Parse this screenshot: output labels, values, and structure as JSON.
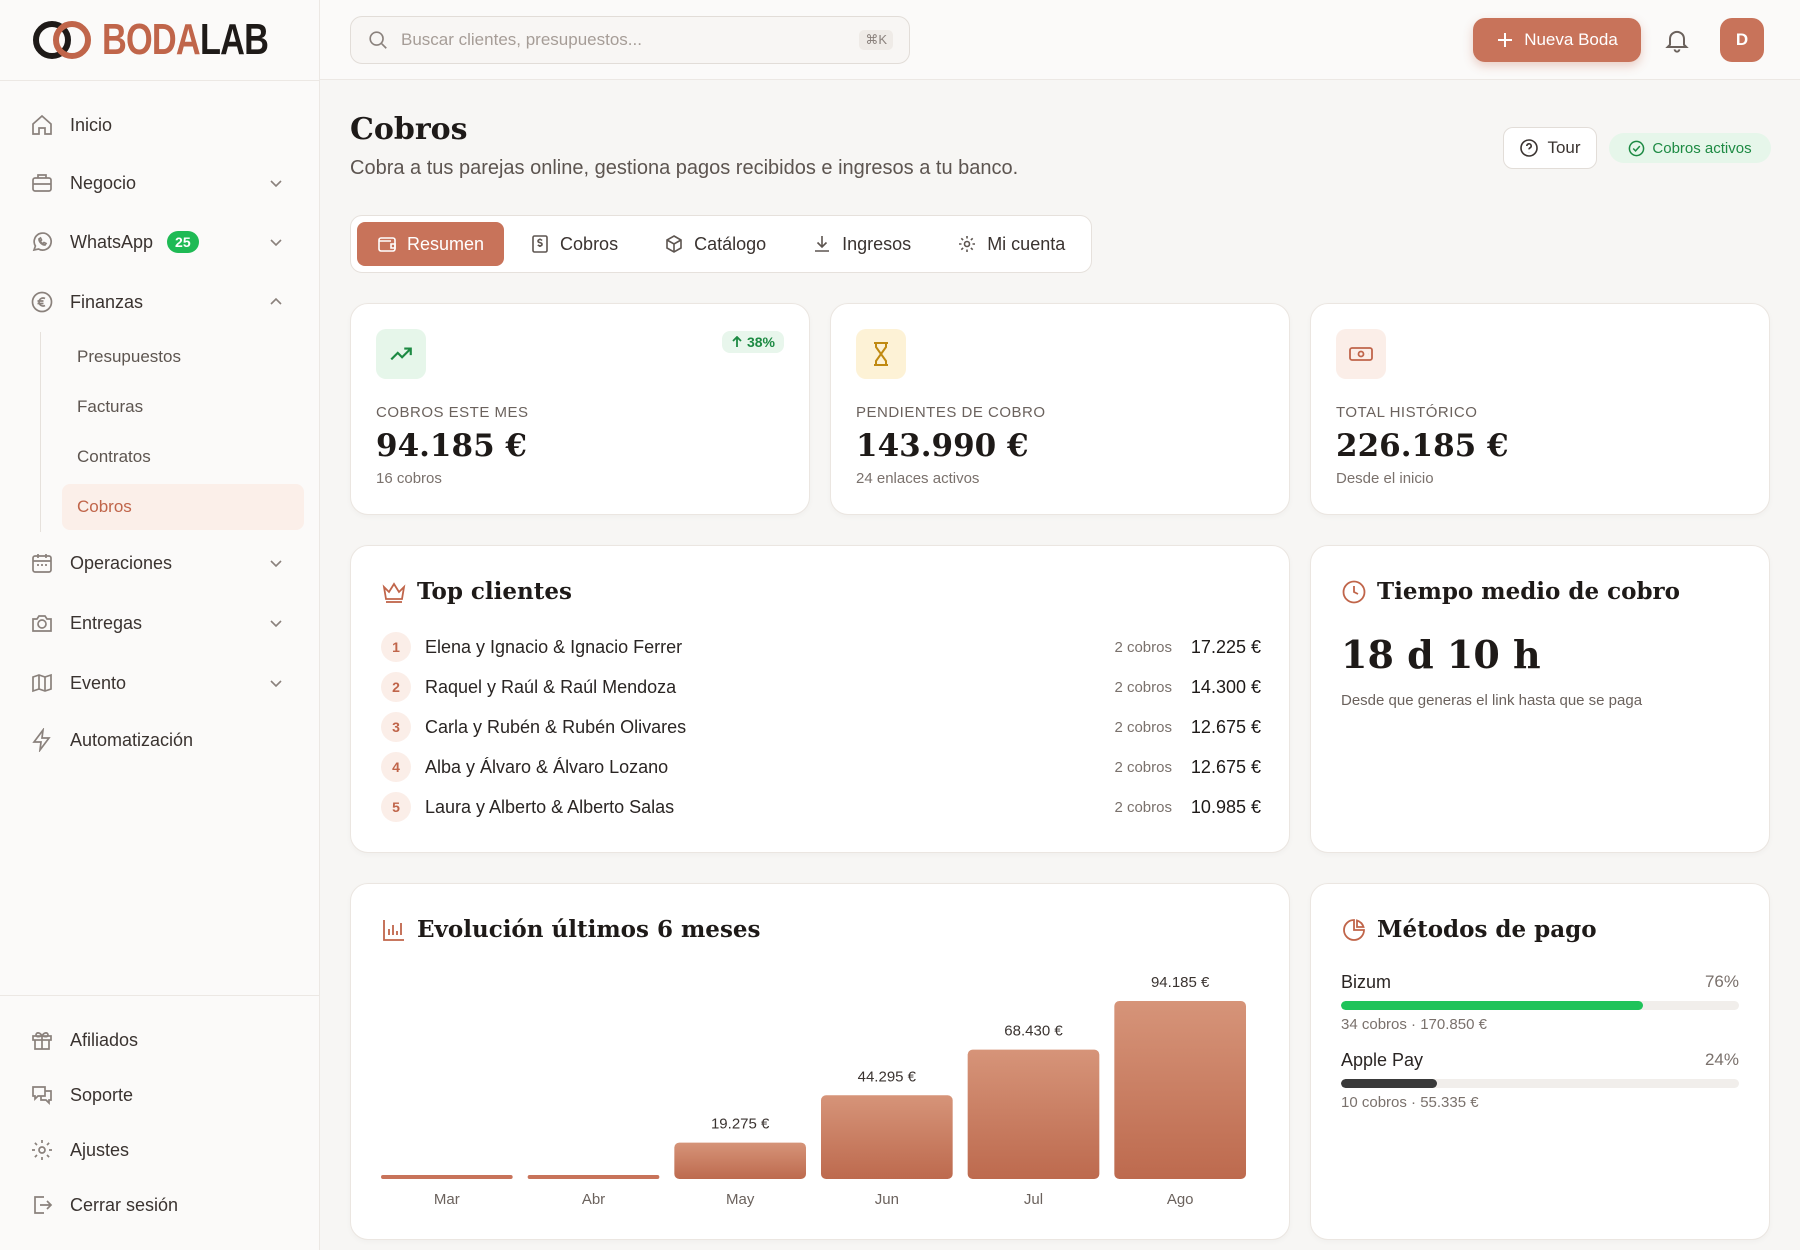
{
  "brand": {
    "logo_left": "BODA",
    "logo_right": "LAB"
  },
  "sidebar": {
    "items": [
      {
        "label": "Inicio"
      },
      {
        "label": "Negocio"
      },
      {
        "label": "WhatsApp",
        "badge": "25"
      },
      {
        "label": "Finanzas"
      },
      {
        "label": "Operaciones"
      },
      {
        "label": "Entregas"
      },
      {
        "label": "Evento"
      },
      {
        "label": "Automatización"
      }
    ],
    "finanzas_sub": [
      {
        "label": "Presupuestos"
      },
      {
        "label": "Facturas"
      },
      {
        "label": "Contratos"
      },
      {
        "label": "Cobros",
        "active": true
      }
    ],
    "bottom": [
      {
        "label": "Afiliados"
      },
      {
        "label": "Soporte"
      },
      {
        "label": "Ajustes"
      },
      {
        "label": "Cerrar sesión"
      }
    ]
  },
  "topbar": {
    "search_placeholder": "Buscar clientes, presupuestos...",
    "search_shortcut": "⌘K",
    "new_button": "Nueva Boda",
    "avatar_initial": "D"
  },
  "page": {
    "title": "Cobros",
    "subtitle": "Cobra a tus parejas online, gestiona pagos recibidos e ingresos a tu banco.",
    "tour_button": "Tour",
    "status_pill": "Cobros activos"
  },
  "tabs": [
    {
      "label": "Resumen",
      "active": true
    },
    {
      "label": "Cobros"
    },
    {
      "label": "Catálogo"
    },
    {
      "label": "Ingresos"
    },
    {
      "label": "Mi cuenta"
    }
  ],
  "stats": [
    {
      "label": "COBROS ESTE MES",
      "value": "94.185 €",
      "foot": "16 cobros",
      "trend": "38%",
      "icon": "trending-up-icon"
    },
    {
      "label": "PENDIENTES DE COBRO",
      "value": "143.990 €",
      "foot": "24 enlaces activos",
      "icon": "hourglass-icon"
    },
    {
      "label": "TOTAL HISTÓRICO",
      "value": "226.185 €",
      "foot": "Desde el inicio",
      "icon": "banknote-icon"
    }
  ],
  "top_clients": {
    "title": "Top clientes",
    "rows": [
      {
        "rank": "1",
        "name": "Elena y Ignacio & Ignacio Ferrer",
        "count": "2 cobros",
        "amount": "17.225 €"
      },
      {
        "rank": "2",
        "name": "Raquel y Raúl & Raúl Mendoza",
        "count": "2 cobros",
        "amount": "14.300 €"
      },
      {
        "rank": "3",
        "name": "Carla y Rubén & Rubén Olivares",
        "count": "2 cobros",
        "amount": "12.675 €"
      },
      {
        "rank": "4",
        "name": "Alba y Álvaro & Álvaro Lozano",
        "count": "2 cobros",
        "amount": "12.675 €"
      },
      {
        "rank": "5",
        "name": "Laura y Alberto & Alberto Salas",
        "count": "2 cobros",
        "amount": "10.985 €"
      }
    ]
  },
  "avg_time": {
    "title": "Tiempo medio de cobro",
    "value": "18 d 10 h",
    "foot": "Desde que generas el link hasta que se paga"
  },
  "chart_data": {
    "type": "bar",
    "title": "Evolución últimos 6 meses",
    "categories": [
      "Mar",
      "Abr",
      "May",
      "Jun",
      "Jul",
      "Ago"
    ],
    "values": [
      0,
      0,
      19275,
      44295,
      68430,
      94185
    ],
    "value_labels": [
      "",
      "",
      "19.275 €",
      "44.295 €",
      "68.430 €",
      "94.185 €"
    ],
    "xlabel": "",
    "ylabel": "",
    "ylim": [
      0,
      94185
    ],
    "grid": false,
    "bar_color": "#c8735a"
  },
  "payment_methods": {
    "title": "Métodos de pago",
    "rows": [
      {
        "name": "Bizum",
        "pct_label": "76%",
        "pct": 0.76,
        "foot": "34 cobros · 170.850 €",
        "color": "#1fc35a"
      },
      {
        "name": "Apple Pay",
        "pct_label": "24%",
        "pct": 0.24,
        "foot": "10 cobros · 55.335 €",
        "color": "#3a3a3a"
      }
    ]
  },
  "colors": {
    "accent": "#c8735a",
    "success": "#1fba55"
  }
}
